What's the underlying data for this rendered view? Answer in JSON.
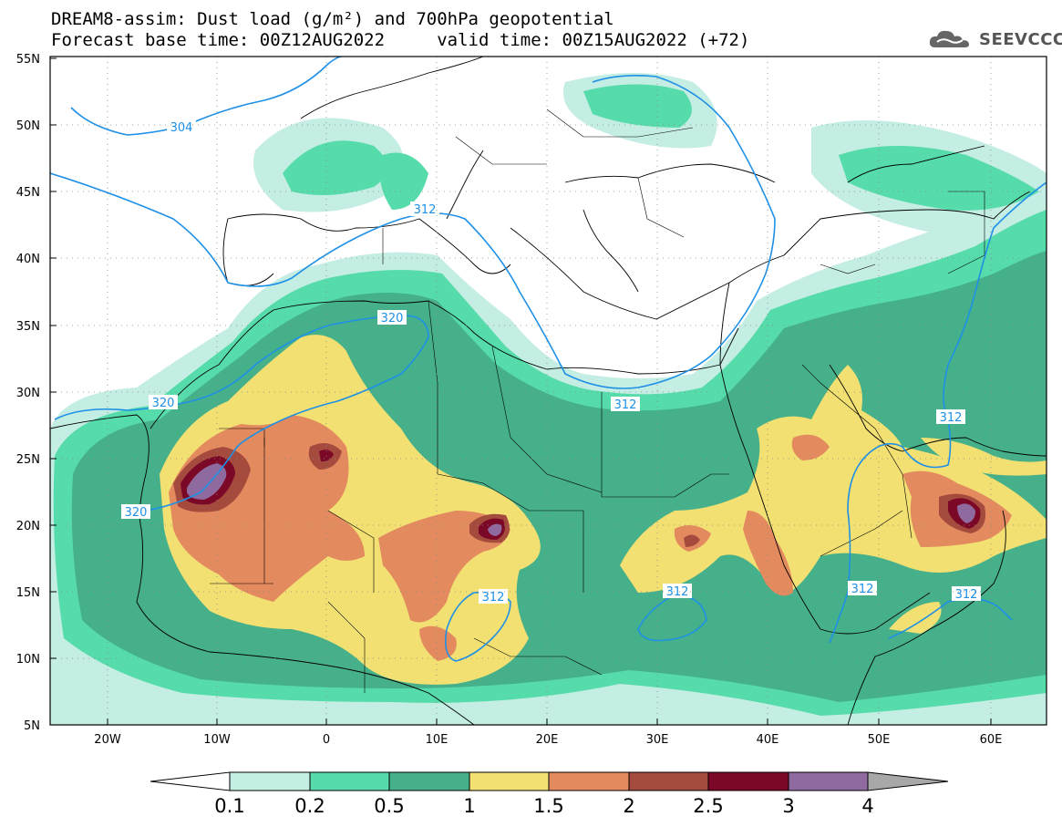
{
  "header": {
    "line1": "DREAM8-assim: Dust load (g/m²) and 700hPa geopotential",
    "line2": "Forecast base time: 00Z12AUG2022     valid time: 00Z15AUG2022 (+72)"
  },
  "logo": {
    "text": "SEEVCCC",
    "icon": "cloud-logo-icon"
  },
  "map": {
    "lat_labels": [
      "55N",
      "50N",
      "45N",
      "40N",
      "35N",
      "30N",
      "25N",
      "20N",
      "15N",
      "10N",
      "5N"
    ],
    "lon_labels": [
      "20W",
      "10W",
      "0",
      "10E",
      "20E",
      "30E",
      "40E",
      "50E",
      "60E"
    ],
    "contour_labels": [
      "304",
      "312",
      "320",
      "320",
      "320",
      "312",
      "312",
      "312",
      "312",
      "312",
      "312"
    ]
  },
  "colorbar": {
    "labels": [
      "0.1",
      "0.2",
      "0.5",
      "1",
      "1.5",
      "2",
      "2.5",
      "3",
      "4"
    ],
    "colors": [
      "#c4ede3",
      "#56dcaa",
      "#46b08a",
      "#f2e073",
      "#e38a5e",
      "#a44b3e",
      "#7c0828",
      "#8f6a9f"
    ]
  }
}
